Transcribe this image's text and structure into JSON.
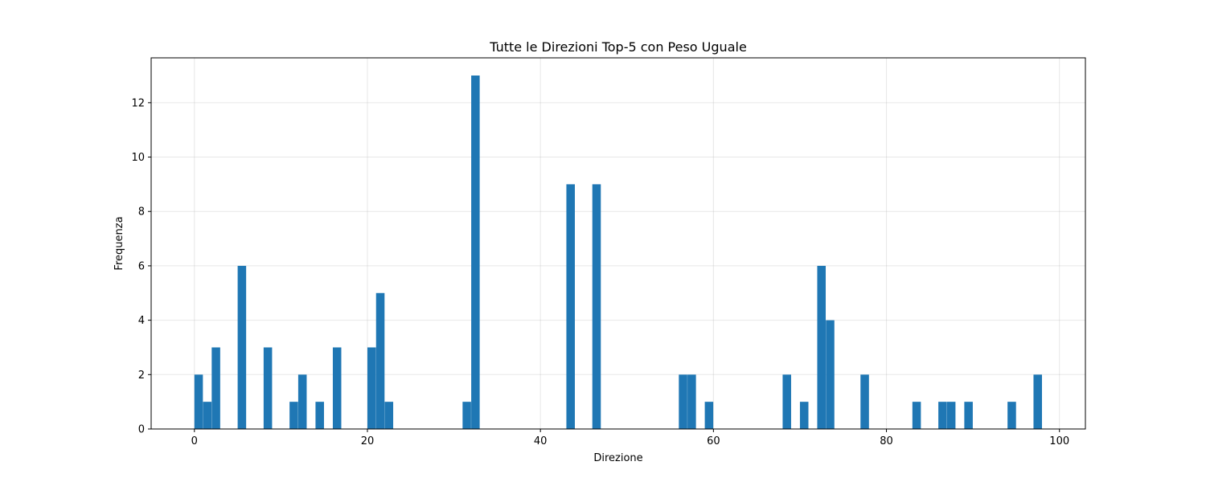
{
  "chart_data": {
    "type": "bar",
    "title": "Tutte le Direzioni Top-5 con Peso Uguale",
    "xlabel": "Direzione",
    "ylabel": "Frequenza",
    "xlim": [
      -5,
      103
    ],
    "ylim": [
      0,
      13.65
    ],
    "xticks": [
      0,
      20,
      40,
      60,
      80,
      100
    ],
    "yticks": [
      0,
      2,
      4,
      6,
      8,
      10,
      12
    ],
    "grid": true,
    "bar_color": "#1f77b4",
    "bin_width": 0.98,
    "bins": [
      {
        "x": 0,
        "value": 2
      },
      {
        "x": 1,
        "value": 1
      },
      {
        "x": 2,
        "value": 3
      },
      {
        "x": 5,
        "value": 6
      },
      {
        "x": 8,
        "value": 3
      },
      {
        "x": 11,
        "value": 1
      },
      {
        "x": 12,
        "value": 2
      },
      {
        "x": 14,
        "value": 1
      },
      {
        "x": 16,
        "value": 3
      },
      {
        "x": 20,
        "value": 3
      },
      {
        "x": 21,
        "value": 5
      },
      {
        "x": 22,
        "value": 1
      },
      {
        "x": 31,
        "value": 1
      },
      {
        "x": 32,
        "value": 13
      },
      {
        "x": 43,
        "value": 9
      },
      {
        "x": 46,
        "value": 9
      },
      {
        "x": 56,
        "value": 2
      },
      {
        "x": 57,
        "value": 2
      },
      {
        "x": 59,
        "value": 1
      },
      {
        "x": 68,
        "value": 2
      },
      {
        "x": 70,
        "value": 1
      },
      {
        "x": 72,
        "value": 6
      },
      {
        "x": 73,
        "value": 4
      },
      {
        "x": 77,
        "value": 2
      },
      {
        "x": 83,
        "value": 1
      },
      {
        "x": 86,
        "value": 1
      },
      {
        "x": 87,
        "value": 1
      },
      {
        "x": 89,
        "value": 1
      },
      {
        "x": 94,
        "value": 1
      },
      {
        "x": 97,
        "value": 2
      }
    ]
  }
}
